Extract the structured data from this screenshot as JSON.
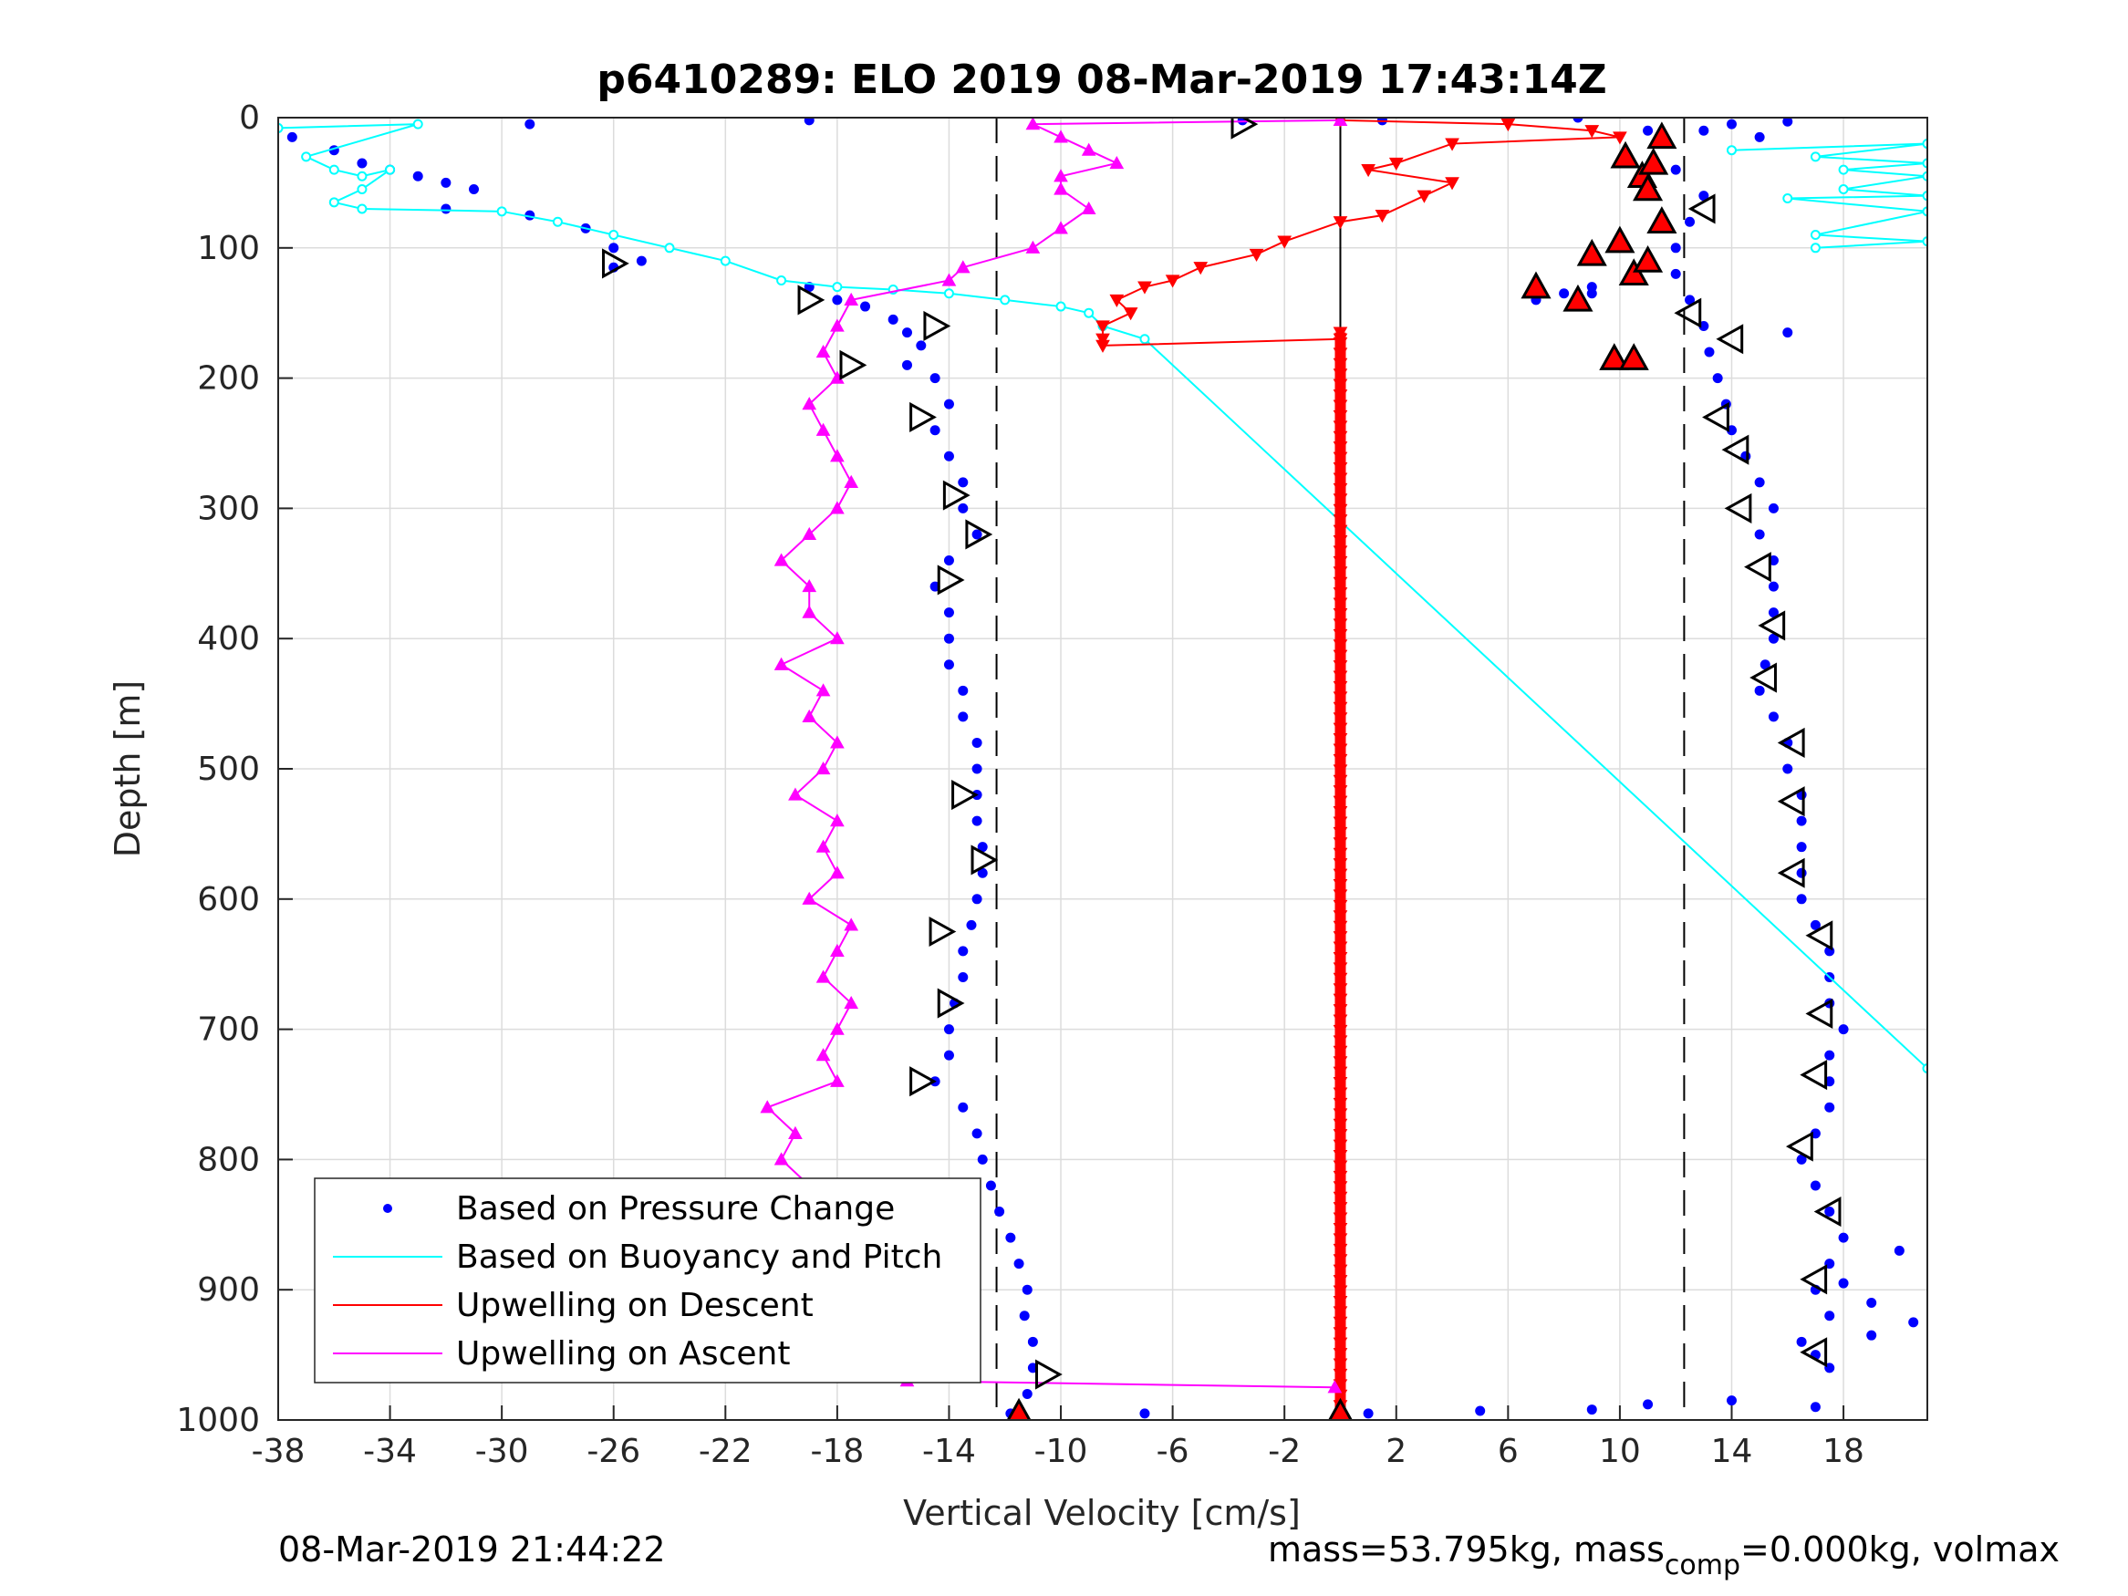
{
  "chart_data": {
    "type": "scatter",
    "title": "p6410289: ELO 2019 08-Mar-2019 17:43:14Z",
    "xlabel": "Vertical Velocity [cm/s]",
    "ylabel": "Depth [m]",
    "xlim": [
      -38,
      21
    ],
    "ylim": [
      0,
      1000
    ],
    "y_reversed": true,
    "grid": true,
    "x_ticks": [
      -38,
      -34,
      -30,
      -26,
      -22,
      -18,
      -14,
      -10,
      -6,
      -2,
      2,
      6,
      10,
      14,
      18
    ],
    "y_ticks": [
      0,
      100,
      200,
      300,
      400,
      500,
      600,
      700,
      800,
      900,
      1000
    ],
    "legend_position": "bottom-left",
    "legend": [
      {
        "label": "Based on Pressure Change",
        "color": "#0000ff",
        "marker": "dot"
      },
      {
        "label": "Based on Buoyancy and Pitch",
        "color": "#00ffff",
        "marker": "line"
      },
      {
        "label": "Upwelling on Descent",
        "color": "#ff0000",
        "marker": "line"
      },
      {
        "label": "Upwelling on Ascent",
        "color": "#ff00ff",
        "marker": "line"
      }
    ],
    "reference_lines": {
      "dashed_x": [
        -12.3,
        12.3
      ],
      "solid_x": 0,
      "solid_x_depth_range": [
        0,
        1000
      ]
    },
    "series": [
      {
        "name": "Based on Pressure Change (descent)",
        "color": "#0000ff",
        "style": "dots",
        "points": [
          [
            -37.5,
            15
          ],
          [
            -36,
            25
          ],
          [
            -35,
            35
          ],
          [
            -34,
            40
          ],
          [
            -33,
            45
          ],
          [
            -32,
            50
          ],
          [
            -31,
            55
          ],
          [
            -32,
            70
          ],
          [
            -29,
            75
          ],
          [
            -27,
            85
          ],
          [
            -26,
            100
          ],
          [
            -26,
            115
          ],
          [
            -25,
            110
          ],
          [
            -19,
            130
          ],
          [
            -18,
            140
          ],
          [
            -17,
            145
          ],
          [
            -16,
            155
          ],
          [
            -15.5,
            165
          ],
          [
            -15,
            175
          ],
          [
            -15.5,
            190
          ],
          [
            -14.5,
            200
          ],
          [
            -14,
            220
          ],
          [
            -14.5,
            240
          ],
          [
            -14,
            260
          ],
          [
            -13.5,
            280
          ],
          [
            -13.5,
            300
          ],
          [
            -13,
            320
          ],
          [
            -14,
            340
          ],
          [
            -14.5,
            360
          ],
          [
            -14,
            380
          ],
          [
            -14,
            400
          ],
          [
            -14,
            420
          ],
          [
            -13.5,
            440
          ],
          [
            -13.5,
            460
          ],
          [
            -13,
            480
          ],
          [
            -13,
            500
          ],
          [
            -13,
            520
          ],
          [
            -13,
            540
          ],
          [
            -12.8,
            560
          ],
          [
            -12.8,
            580
          ],
          [
            -13,
            600
          ],
          [
            -13.2,
            620
          ],
          [
            -13.5,
            640
          ],
          [
            -13.5,
            660
          ],
          [
            -13.8,
            680
          ],
          [
            -14,
            700
          ],
          [
            -14,
            720
          ],
          [
            -14.5,
            740
          ],
          [
            -13.5,
            760
          ],
          [
            -13,
            780
          ],
          [
            -12.8,
            800
          ],
          [
            -12.5,
            820
          ],
          [
            -12.2,
            840
          ],
          [
            -11.8,
            860
          ],
          [
            -11.5,
            880
          ],
          [
            -11.2,
            900
          ],
          [
            -11.3,
            920
          ],
          [
            -11,
            940
          ],
          [
            -11,
            960
          ],
          [
            -11.2,
            980
          ],
          [
            -11.8,
            995
          ]
        ]
      },
      {
        "name": "Based on Pressure Change (ascent)",
        "color": "#0000ff",
        "style": "dots",
        "points": [
          [
            17,
            990
          ],
          [
            14,
            985
          ],
          [
            11,
            988
          ],
          [
            9,
            992
          ],
          [
            5,
            993
          ],
          [
            1,
            995
          ],
          [
            -7,
            995
          ],
          [
            17.5,
            960
          ],
          [
            17,
            950
          ],
          [
            16.5,
            940
          ],
          [
            17.5,
            920
          ],
          [
            17,
            900
          ],
          [
            17.5,
            880
          ],
          [
            18,
            860
          ],
          [
            17.5,
            840
          ],
          [
            17,
            820
          ],
          [
            16.5,
            800
          ],
          [
            17,
            780
          ],
          [
            17.5,
            760
          ],
          [
            17.5,
            740
          ],
          [
            17.5,
            720
          ],
          [
            18,
            700
          ],
          [
            17.5,
            680
          ],
          [
            17.5,
            660
          ],
          [
            17.5,
            640
          ],
          [
            17,
            620
          ],
          [
            16.5,
            600
          ],
          [
            16.5,
            580
          ],
          [
            16.5,
            560
          ],
          [
            16.5,
            540
          ],
          [
            16.5,
            520
          ],
          [
            16,
            500
          ],
          [
            16,
            480
          ],
          [
            15.5,
            460
          ],
          [
            15,
            440
          ],
          [
            15.2,
            420
          ],
          [
            15.5,
            400
          ],
          [
            15.5,
            380
          ],
          [
            15.5,
            360
          ],
          [
            15.5,
            340
          ],
          [
            15,
            320
          ],
          [
            15.5,
            300
          ],
          [
            15,
            280
          ],
          [
            14.5,
            260
          ],
          [
            14,
            240
          ],
          [
            13.8,
            220
          ],
          [
            13.5,
            200
          ],
          [
            13.2,
            180
          ],
          [
            13,
            160
          ],
          [
            12.5,
            140
          ],
          [
            12,
            120
          ],
          [
            12,
            100
          ],
          [
            12.5,
            80
          ],
          [
            13,
            60
          ],
          [
            12,
            40
          ],
          [
            11.5,
            20
          ],
          [
            11,
            10
          ]
        ]
      },
      {
        "name": "Based on Pressure Change (scattered)",
        "color": "#0000ff",
        "style": "dots",
        "points": [
          [
            -29,
            5
          ],
          [
            -19,
            2
          ],
          [
            -3.5,
            2
          ],
          [
            1.5,
            2
          ],
          [
            8.5,
            0
          ],
          [
            14,
            5
          ],
          [
            16,
            3
          ],
          [
            13,
            10
          ],
          [
            15,
            15
          ],
          [
            9,
            130
          ],
          [
            8,
            135
          ],
          [
            7,
            140
          ],
          [
            9,
            135
          ],
          [
            16,
            165
          ],
          [
            20,
            870
          ],
          [
            20.5,
            925
          ],
          [
            19,
            935
          ],
          [
            19,
            910
          ],
          [
            18,
            895
          ]
        ]
      },
      {
        "name": "Based on Buoyancy and Pitch",
        "color": "#00ffff",
        "style": "line-circles",
        "points": [
          [
            -38,
            8
          ],
          [
            -33,
            5
          ],
          [
            -37,
            30
          ],
          [
            -36,
            40
          ],
          [
            -35,
            45
          ],
          [
            -34,
            40
          ],
          [
            -35,
            55
          ],
          [
            -36,
            65
          ],
          [
            -35,
            70
          ],
          [
            -30,
            72
          ],
          [
            -28,
            80
          ],
          [
            -26,
            90
          ],
          [
            -24,
            100
          ],
          [
            -22,
            110
          ],
          [
            -20,
            125
          ],
          [
            -18,
            130
          ],
          [
            -16,
            132
          ],
          [
            -14,
            135
          ],
          [
            -12,
            140
          ],
          [
            -10,
            145
          ],
          [
            -9,
            150
          ],
          [
            -8.5,
            160
          ],
          [
            -7,
            170
          ],
          [
            21,
            730
          ]
        ]
      },
      {
        "name": "Based on Buoyancy and Pitch (upper-right)",
        "color": "#00ffff",
        "style": "line-circles",
        "points": [
          [
            14,
            25
          ],
          [
            21,
            20
          ],
          [
            17,
            30
          ],
          [
            21,
            35
          ],
          [
            18,
            40
          ],
          [
            21,
            45
          ],
          [
            18,
            55
          ],
          [
            21,
            60
          ],
          [
            16,
            62
          ],
          [
            21,
            72
          ],
          [
            17,
            90
          ],
          [
            21,
            95
          ],
          [
            17,
            100
          ]
        ]
      },
      {
        "name": "Upwelling on Descent",
        "color": "#ff0000",
        "style": "line-triangle-down",
        "points": [
          [
            0,
            2
          ],
          [
            6,
            5
          ],
          [
            9,
            10
          ],
          [
            10,
            15
          ],
          [
            4,
            20
          ],
          [
            2,
            35
          ],
          [
            1,
            40
          ],
          [
            4,
            50
          ],
          [
            3,
            60
          ],
          [
            1.5,
            75
          ],
          [
            0,
            80
          ],
          [
            -2,
            95
          ],
          [
            -3,
            105
          ],
          [
            -5,
            115
          ],
          [
            -6,
            125
          ],
          [
            -7,
            130
          ],
          [
            -8,
            140
          ],
          [
            -7.5,
            150
          ],
          [
            -8.5,
            160
          ],
          [
            -8.5,
            170
          ],
          [
            -8.5,
            175
          ],
          [
            0,
            170
          ]
        ]
      },
      {
        "name": "Upwelling on Descent (deep)",
        "color": "#ff0000",
        "style": "vertical-band",
        "x": 0,
        "depth_range": [
          165,
          1000
        ]
      },
      {
        "name": "Upwelling on Ascent",
        "color": "#ff00ff",
        "style": "line-triangle-up",
        "points": [
          [
            -0.2,
            975
          ],
          [
            -15.5,
            970
          ],
          [
            -16.5,
            960
          ],
          [
            -17.5,
            945
          ],
          [
            -17,
            930
          ],
          [
            -18.5,
            915
          ],
          [
            -19,
            900
          ],
          [
            -20,
            880
          ],
          [
            -19.5,
            860
          ],
          [
            -18,
            840
          ],
          [
            -19,
            820
          ],
          [
            -20,
            800
          ],
          [
            -19.5,
            780
          ],
          [
            -20.5,
            760
          ],
          [
            -18,
            740
          ],
          [
            -18.5,
            720
          ],
          [
            -18,
            700
          ],
          [
            -17.5,
            680
          ],
          [
            -18.5,
            660
          ],
          [
            -18,
            640
          ],
          [
            -17.5,
            620
          ],
          [
            -19,
            600
          ],
          [
            -18,
            580
          ],
          [
            -18.5,
            560
          ],
          [
            -18,
            540
          ],
          [
            -19.5,
            520
          ],
          [
            -18.5,
            500
          ],
          [
            -18,
            480
          ],
          [
            -19,
            460
          ],
          [
            -18.5,
            440
          ],
          [
            -20,
            420
          ],
          [
            -18,
            400
          ],
          [
            -19,
            380
          ],
          [
            -19,
            360
          ],
          [
            -20,
            340
          ],
          [
            -19,
            320
          ],
          [
            -18,
            300
          ],
          [
            -17.5,
            280
          ],
          [
            -18,
            260
          ],
          [
            -18.5,
            240
          ],
          [
            -19,
            220
          ],
          [
            -18,
            200
          ],
          [
            -18.5,
            180
          ],
          [
            -18,
            160
          ],
          [
            -17.5,
            140
          ],
          [
            -14,
            125
          ],
          [
            -13.5,
            115
          ],
          [
            -11,
            100
          ],
          [
            -10,
            85
          ],
          [
            -9,
            70
          ],
          [
            -10,
            55
          ],
          [
            -10,
            45
          ],
          [
            -8,
            35
          ],
          [
            -9,
            25
          ],
          [
            -10,
            15
          ],
          [
            -11,
            5
          ],
          [
            0,
            2
          ]
        ]
      }
    ],
    "markers_right_triangle": [
      [
        -3.5,
        5
      ],
      [
        -19,
        140
      ],
      [
        -26,
        112
      ],
      [
        -14.5,
        160
      ],
      [
        -17.5,
        190
      ],
      [
        -15,
        230
      ],
      [
        -13.8,
        290
      ],
      [
        -13,
        320
      ],
      [
        -14,
        355
      ],
      [
        -13.5,
        520
      ],
      [
        -12.8,
        570
      ],
      [
        -14.3,
        625
      ],
      [
        -14,
        680
      ],
      [
        -15,
        740
      ],
      [
        -10.5,
        965
      ]
    ],
    "markers_left_triangle": [
      [
        13,
        70
      ],
      [
        12.5,
        150
      ],
      [
        14,
        170
      ],
      [
        13.5,
        230
      ],
      [
        14.2,
        255
      ],
      [
        14.3,
        300
      ],
      [
        15,
        345
      ],
      [
        15.5,
        390
      ],
      [
        15.2,
        430
      ],
      [
        16.2,
        480
      ],
      [
        16.2,
        525
      ],
      [
        16.2,
        580
      ],
      [
        17.2,
        628
      ],
      [
        17.2,
        688
      ],
      [
        17,
        735
      ],
      [
        16.5,
        790
      ],
      [
        17.5,
        840
      ],
      [
        17,
        892
      ],
      [
        17,
        948
      ]
    ],
    "markers_red_up_triangle": [
      [
        -11.5,
        995
      ],
      [
        0,
        995
      ],
      [
        7,
        130
      ],
      [
        8.5,
        140
      ],
      [
        9,
        105
      ],
      [
        10,
        95
      ],
      [
        10.5,
        120
      ],
      [
        11,
        110
      ],
      [
        9.8,
        185
      ],
      [
        10.5,
        185
      ],
      [
        10.2,
        30
      ],
      [
        10.8,
        45
      ],
      [
        11,
        55
      ],
      [
        11.5,
        15
      ],
      [
        11.2,
        35
      ],
      [
        11.5,
        80
      ]
    ]
  },
  "footer": {
    "timestamp": "08-Mar-2019 21:44:22",
    "mass_text_a": "mass=53.795kg, mass",
    "mass_sub": "comp",
    "mass_text_b": "=0.000kg, volmax"
  }
}
